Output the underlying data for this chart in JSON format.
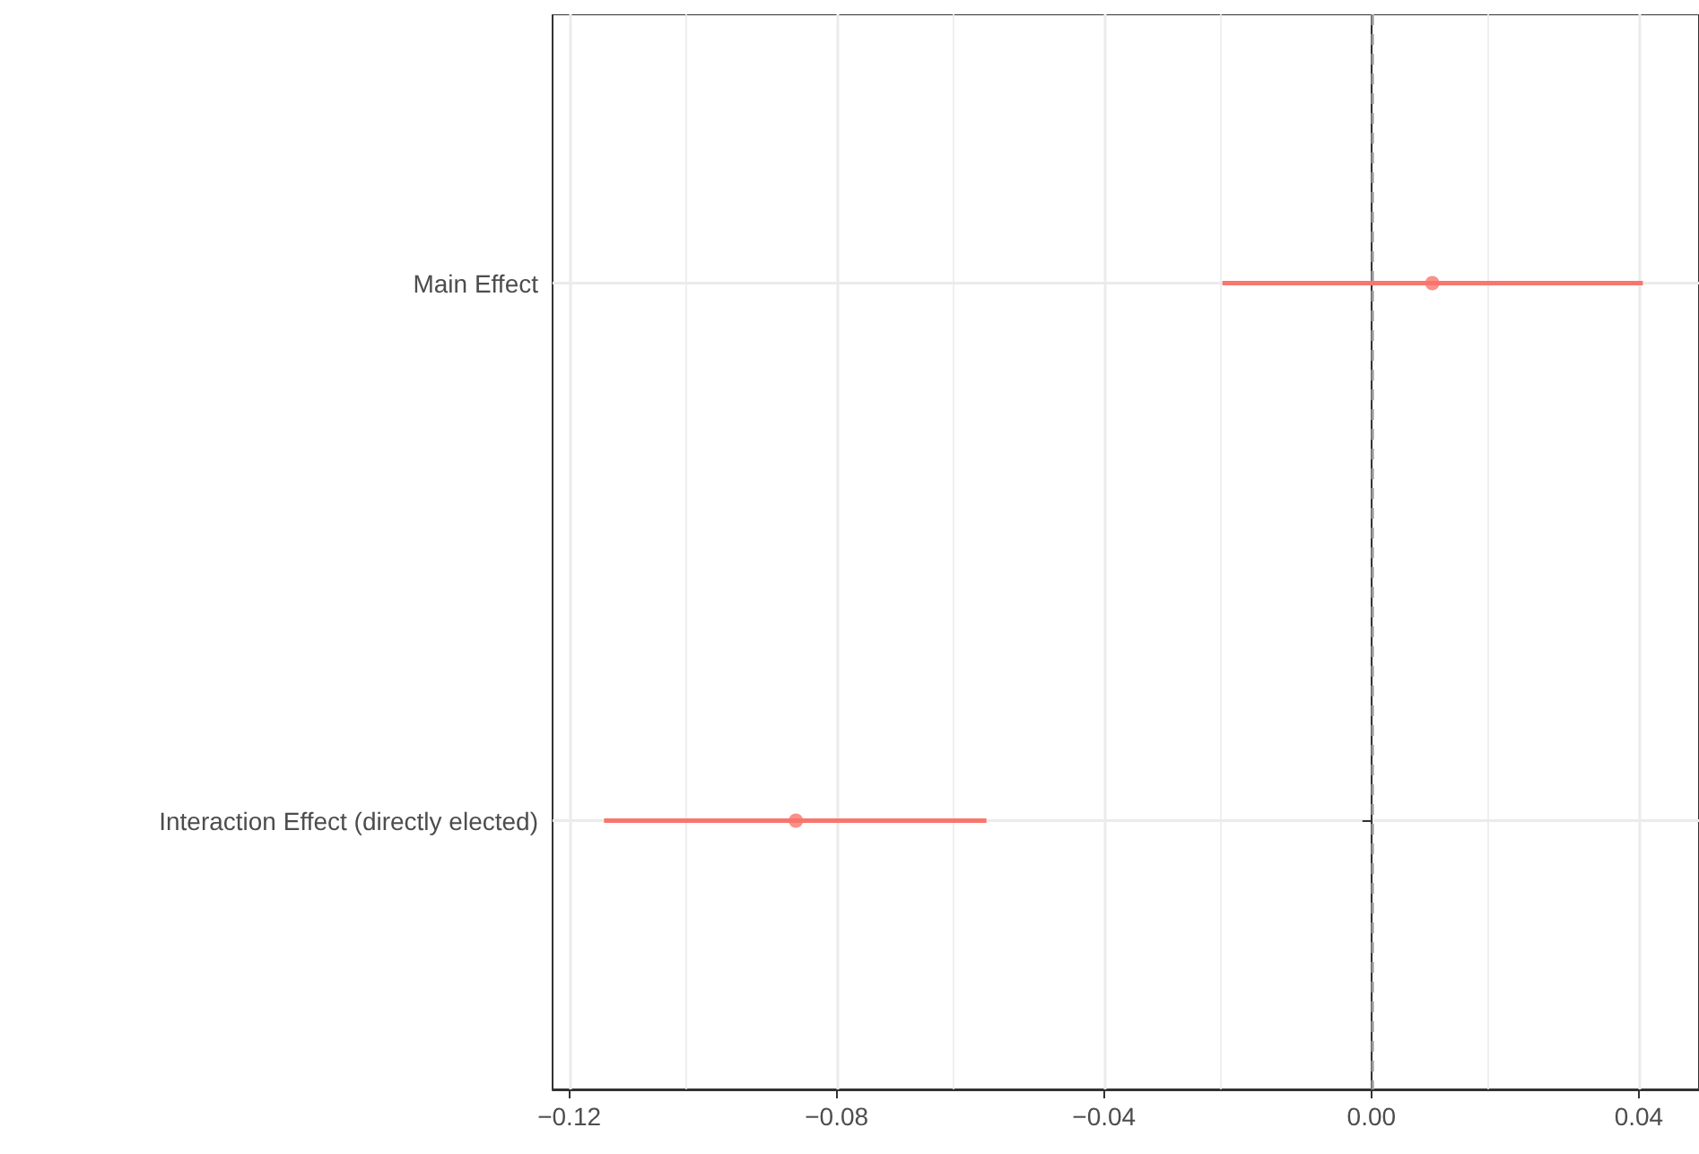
{
  "chart_data": {
    "type": "scatter",
    "orientation": "horizontal",
    "categories": [
      "Main Effect",
      "Interaction Effect (directly elected)"
    ],
    "series": [
      {
        "color": "#f8766d",
        "values": [
          0.0091,
          -0.0861
        ],
        "errors": [
          [
            -0.0223,
            0.0406
          ],
          [
            -0.1148,
            -0.0576
          ]
        ]
      }
    ],
    "xlim": [
      -0.1225,
      0.049
    ],
    "xticks": [
      {
        "value": -0.12,
        "label": "−0.12"
      },
      {
        "value": -0.08,
        "label": "−0.08"
      },
      {
        "value": -0.04,
        "label": "−0.04"
      },
      {
        "value": 0,
        "label": "0.00"
      },
      {
        "value": 0.04,
        "label": "0.04"
      }
    ],
    "ref_lines": [
      {
        "axis": "x",
        "value": 0,
        "color": "#999999",
        "line_style": "dashed"
      }
    ],
    "grid": true,
    "marker": "circle"
  }
}
